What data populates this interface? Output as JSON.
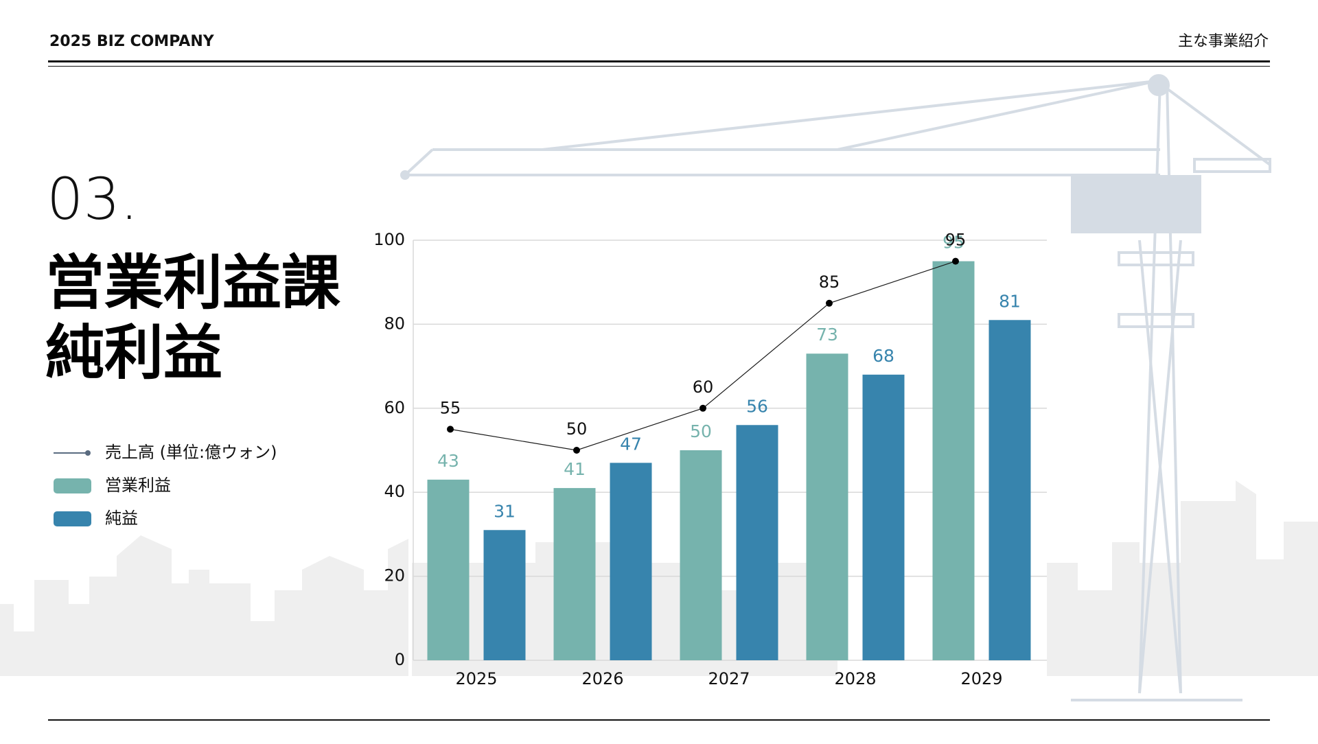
{
  "header": {
    "left": "2025 BIZ COMPANY",
    "right": "主な事業紹介"
  },
  "section": {
    "number": "03.",
    "title_lines": [
      "営業利益課",
      "純利益"
    ]
  },
  "chart_data": {
    "type": "combo",
    "categories": [
      "2025",
      "2026",
      "2027",
      "2028",
      "2029"
    ],
    "series": [
      {
        "name": "売上高 (単位:億ウォン)",
        "type": "line",
        "color": "#1a1a1a",
        "values": [
          55,
          50,
          60,
          85,
          95
        ]
      },
      {
        "name": "営業利益",
        "type": "bar",
        "color": "#76b3ad",
        "values": [
          43,
          41,
          50,
          73,
          95
        ]
      },
      {
        "name": "純益",
        "type": "bar",
        "color": "#3784ad",
        "values": [
          31,
          47,
          56,
          68,
          81
        ]
      }
    ],
    "ylim": [
      0,
      100
    ],
    "yticks": [
      0,
      20,
      40,
      60,
      80,
      100
    ],
    "grid": true
  }
}
